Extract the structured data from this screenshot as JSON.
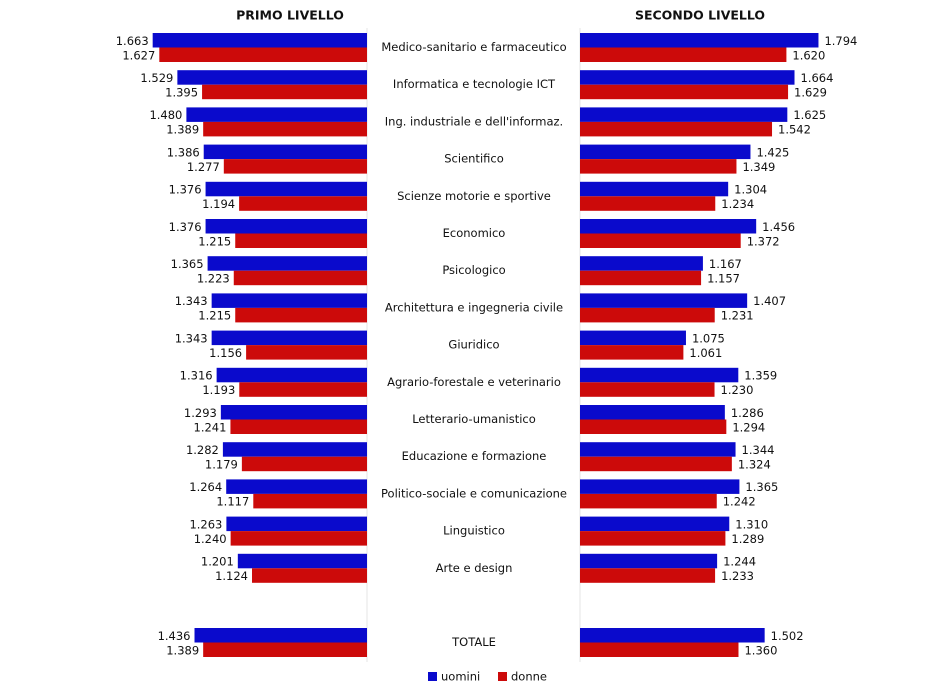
{
  "chart_data": {
    "type": "bar",
    "categories": [
      "Medico-sanitario e farmaceutico",
      "Informatica e tecnologie ICT",
      "Ing. industriale e dell'informaz.",
      "Scientifico",
      "Scienze motorie e sportive",
      "Economico",
      "Psicologico",
      "Architettura e ingegneria civile",
      "Giuridico",
      "Agrario-forestale e veterinario",
      "Letterario-umanistico",
      "Educazione e formazione",
      "Politico-sociale e comunicazione",
      "Linguistico",
      "Arte e design",
      "TOTALE"
    ],
    "legend": [
      {
        "name": "uomini",
        "color": "#0a0acc"
      },
      {
        "name": "donne",
        "color": "#cc0a0a"
      }
    ],
    "xlim": [
      500,
      1900
    ],
    "panels": [
      {
        "title": "PRIMO LIVELLO",
        "series": [
          {
            "values": [
              1663,
              1529,
              1480,
              1386,
              1376,
              1376,
              1365,
              1343,
              1343,
              1316,
              1293,
              1282,
              1264,
              1263,
              1201,
              1436
            ],
            "value_labels": [
              "1.663",
              "1.529",
              "1.480",
              "1.386",
              "1.376",
              "1.376",
              "1.365",
              "1.343",
              "1.343",
              "1.316",
              "1.293",
              "1.282",
              "1.264",
              "1.263",
              "1.201",
              "1.436"
            ]
          },
          {
            "values": [
              1627,
              1395,
              1389,
              1277,
              1194,
              1215,
              1223,
              1215,
              1156,
              1193,
              1241,
              1179,
              1117,
              1240,
              1124,
              1389
            ],
            "value_labels": [
              "1.627",
              "1.395",
              "1.389",
              "1.277",
              "1.194",
              "1.215",
              "1.223",
              "1.215",
              "1.156",
              "1.193",
              "1.241",
              "1.179",
              "1.117",
              "1.240",
              "1.124",
              "1.389"
            ]
          }
        ]
      },
      {
        "title": "SECONDO LIVELLO",
        "series": [
          {
            "values": [
              1794,
              1664,
              1625,
              1425,
              1304,
              1456,
              1167,
              1407,
              1075,
              1359,
              1286,
              1344,
              1365,
              1310,
              1244,
              1502
            ],
            "value_labels": [
              "1.794",
              "1.664",
              "1.625",
              "1.425",
              "1.304",
              "1.456",
              "1.167",
              "1.407",
              "1.075",
              "1.359",
              "1.286",
              "1.344",
              "1.365",
              "1.310",
              "1.244",
              "1.502"
            ]
          },
          {
            "values": [
              1620,
              1629,
              1542,
              1349,
              1234,
              1372,
              1157,
              1231,
              1061,
              1230,
              1294,
              1324,
              1242,
              1289,
              1233,
              1360
            ],
            "value_labels": [
              "1.620",
              "1.629",
              "1.542",
              "1.349",
              "1.234",
              "1.372",
              "1.157",
              "1.231",
              "1.061",
              "1.230",
              "1.294",
              "1.324",
              "1.242",
              "1.289",
              "1.233",
              "1.360"
            ]
          }
        ]
      }
    ]
  }
}
